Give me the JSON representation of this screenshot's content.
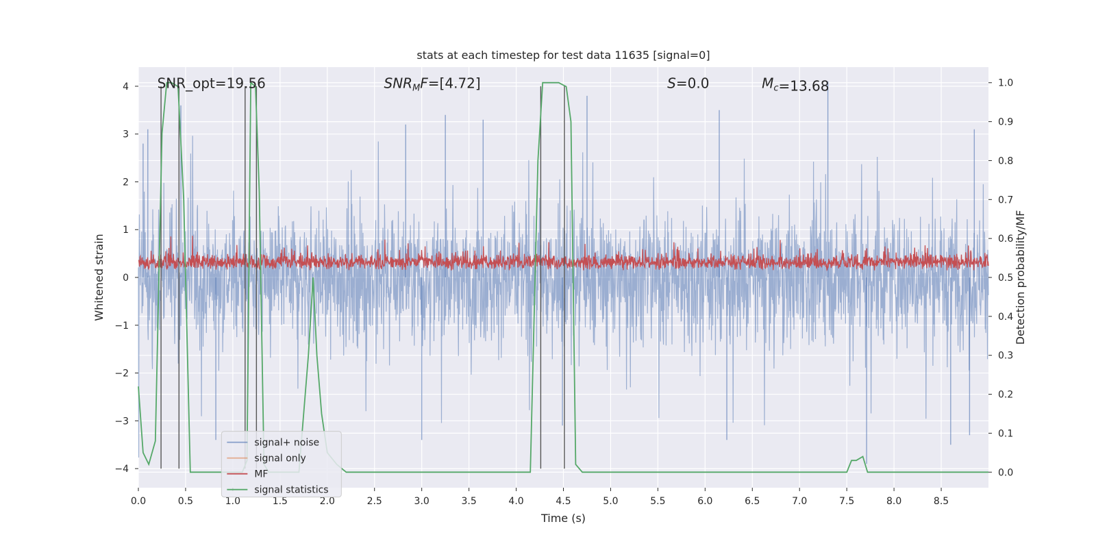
{
  "chart_data": {
    "type": "line",
    "title": "stats at each timestep for test data 11635 [signal=0]",
    "xlabel": "Time (s)",
    "ylabel_left": "Whitened strain",
    "ylabel_right": "Detection probability/MF",
    "xlim": [
      0,
      9.0
    ],
    "ylim_left": [
      -4.4,
      4.4
    ],
    "ylim_right": [
      -0.04,
      1.04
    ],
    "grid": true,
    "x_ticks": [
      0.0,
      0.5,
      1.0,
      1.5,
      2.0,
      2.5,
      3.0,
      3.5,
      4.0,
      4.5,
      5.0,
      5.5,
      6.0,
      6.5,
      7.0,
      7.5,
      8.0,
      8.5
    ],
    "x_tick_labels": [
      "0.0",
      "0.5",
      "1.0",
      "1.5",
      "2.0",
      "2.5",
      "3.0",
      "3.5",
      "4.0",
      "4.5",
      "5.0",
      "5.5",
      "6.0",
      "6.5",
      "7.0",
      "7.5",
      "8.0",
      "8.5"
    ],
    "y_left_ticks": [
      -4,
      -3,
      -2,
      -1,
      0,
      1,
      2,
      3,
      4
    ],
    "y_left_tick_labels": [
      "−4",
      "−3",
      "−2",
      "−1",
      "0",
      "1",
      "2",
      "3",
      "4"
    ],
    "y_right_ticks": [
      0.0,
      0.1,
      0.2,
      0.3,
      0.4,
      0.5,
      0.6,
      0.7,
      0.8,
      0.9,
      1.0
    ],
    "y_right_tick_labels": [
      "0.0",
      "0.1",
      "0.2",
      "0.3",
      "0.4",
      "0.5",
      "0.6",
      "0.7",
      "0.8",
      "0.9",
      "1.0"
    ],
    "annotations": [
      {
        "text": "SNR_opt=19.56",
        "x": 0.2,
        "y": 4.05
      },
      {
        "text": "SNR_MF=[4.72]",
        "x": 2.6,
        "y": 4.05
      },
      {
        "text": "S=0.0",
        "x": 5.6,
        "y": 4.05
      },
      {
        "text": "M_c=13.68",
        "x": 6.6,
        "y": 4.05
      }
    ],
    "vertical_lines": [
      0.24,
      0.43,
      1.13,
      1.25,
      4.26,
      4.51
    ],
    "vertical_line_range": [
      -4.0,
      4.0
    ],
    "series": [
      {
        "name": "signal+ noise",
        "axis": "left",
        "color": "#4c72b0",
        "note": "noise band, amplitude mostly within ±1.6 with spikes to about ±3.8",
        "band": [
          -1.6,
          1.6
        ],
        "peaks": [
          [
            0.05,
            2.8
          ],
          [
            0.1,
            3.1
          ],
          [
            0.45,
            3.6
          ],
          [
            2.83,
            3.2
          ],
          [
            3.25,
            3.4
          ],
          [
            3.65,
            3.3
          ],
          [
            4.75,
            3.8
          ],
          [
            6.15,
            3.5
          ],
          [
            7.3,
            4.1
          ],
          [
            8.85,
            3.1
          ],
          [
            0.82,
            -3.4
          ],
          [
            3.0,
            -3.4
          ],
          [
            4.49,
            -3.1
          ],
          [
            6.23,
            -3.4
          ],
          [
            7.71,
            -3.9
          ],
          [
            8.6,
            -3.5
          ],
          [
            8.8,
            -3.3
          ]
        ]
      },
      {
        "name": "signal only",
        "axis": "left",
        "color": "#dd8452",
        "x": [],
        "y": []
      },
      {
        "name": "MF",
        "axis": "right",
        "color": "#c44e52",
        "note": "matched-filter output fluctuating around 0.53 (range ~0.50–0.62)",
        "mean": 0.53,
        "range": [
          0.5,
          0.62
        ]
      },
      {
        "name": "signal statistics",
        "axis": "right",
        "color": "#55a868",
        "x": [
          0.0,
          0.05,
          0.11,
          0.18,
          0.25,
          0.3,
          0.35,
          0.42,
          0.48,
          0.55,
          0.6,
          0.8,
          1.0,
          1.1,
          1.15,
          1.19,
          1.24,
          1.28,
          1.33,
          1.38,
          1.5,
          1.7,
          1.8,
          1.85,
          1.89,
          1.94,
          2.0,
          2.1,
          2.2,
          2.3,
          2.5,
          3.0,
          3.5,
          4.0,
          4.15,
          4.23,
          4.28,
          4.35,
          4.45,
          4.53,
          4.58,
          4.63,
          4.7,
          5.0,
          6.0,
          7.0,
          7.5,
          7.55,
          7.6,
          7.67,
          7.72,
          7.8,
          8.5,
          9.0
        ],
        "y": [
          0.22,
          0.05,
          0.02,
          0.08,
          0.87,
          1.0,
          1.0,
          0.99,
          0.7,
          0.0,
          0.0,
          0.0,
          0.0,
          0.0,
          0.03,
          1.0,
          0.99,
          0.72,
          0.02,
          0.0,
          0.0,
          0.0,
          0.3,
          0.5,
          0.3,
          0.15,
          0.05,
          0.02,
          0.0,
          0.0,
          0.0,
          0.0,
          0.0,
          0.0,
          0.0,
          0.8,
          1.0,
          1.0,
          1.0,
          0.99,
          0.9,
          0.02,
          0.0,
          0.0,
          0.0,
          0.0,
          0.0,
          0.03,
          0.03,
          0.04,
          0.0,
          0.0,
          0.0,
          0.0
        ]
      }
    ],
    "legend": {
      "placement": "lower-left",
      "entries": [
        {
          "label": "signal+ noise",
          "color": "#4c72b0"
        },
        {
          "label": "signal only",
          "color": "#dd8452"
        },
        {
          "label": "MF",
          "color": "#c44e52"
        },
        {
          "label": "signal statistics",
          "color": "#55a868"
        }
      ]
    }
  }
}
